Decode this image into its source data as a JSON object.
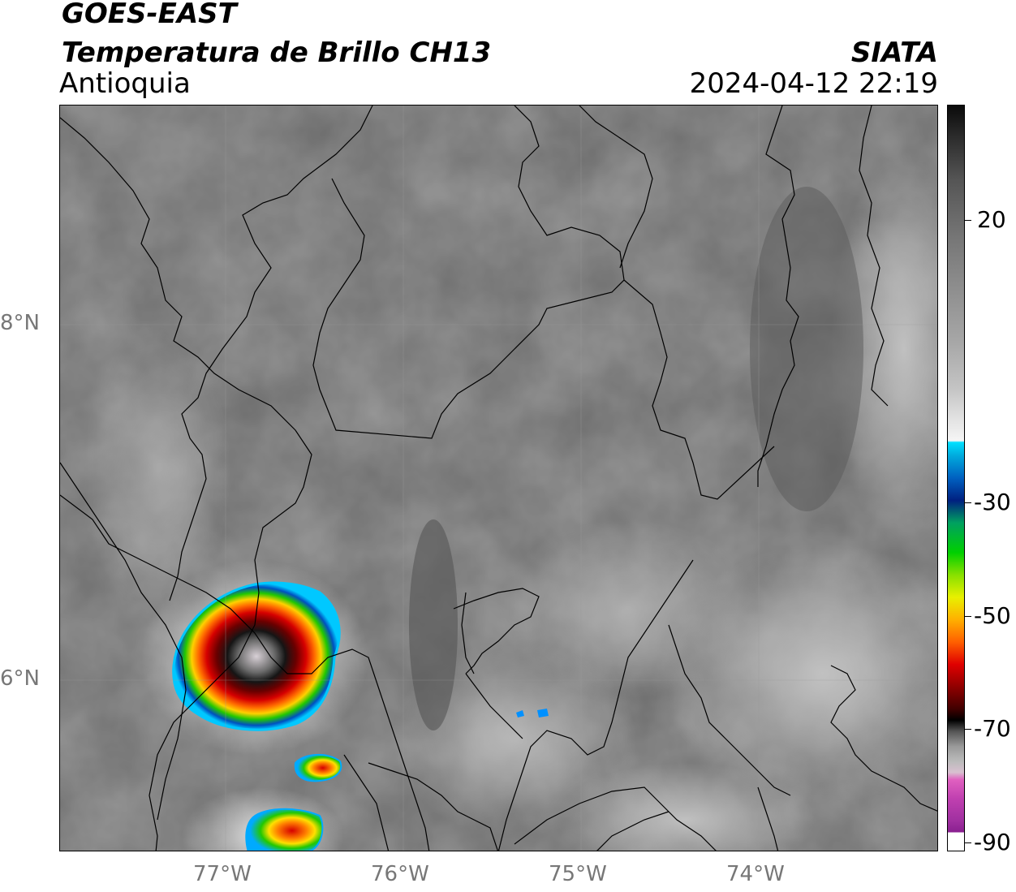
{
  "header": {
    "satellite": "GOES-EAST",
    "product": "Temperatura de Brillo CH13",
    "region": "Antioquia",
    "agency": "SIATA",
    "datetime": "2024-04-12 22:19"
  },
  "map": {
    "lon_ticks": [
      {
        "value": -77,
        "label": "77°W"
      },
      {
        "value": -76,
        "label": "76°W"
      },
      {
        "value": -75,
        "label": "75°W"
      },
      {
        "value": -74,
        "label": "74°W"
      }
    ],
    "lat_ticks": [
      {
        "value": 8,
        "label": "8°N"
      },
      {
        "value": 6,
        "label": "6°N"
      }
    ]
  },
  "colorbar": {
    "ticks": [
      {
        "value": 20,
        "label": "20"
      },
      {
        "value": -30,
        "label": "-30"
      },
      {
        "value": -50,
        "label": "-50"
      },
      {
        "value": -70,
        "label": "-70"
      },
      {
        "value": -90,
        "label": "-90"
      }
    ]
  }
}
